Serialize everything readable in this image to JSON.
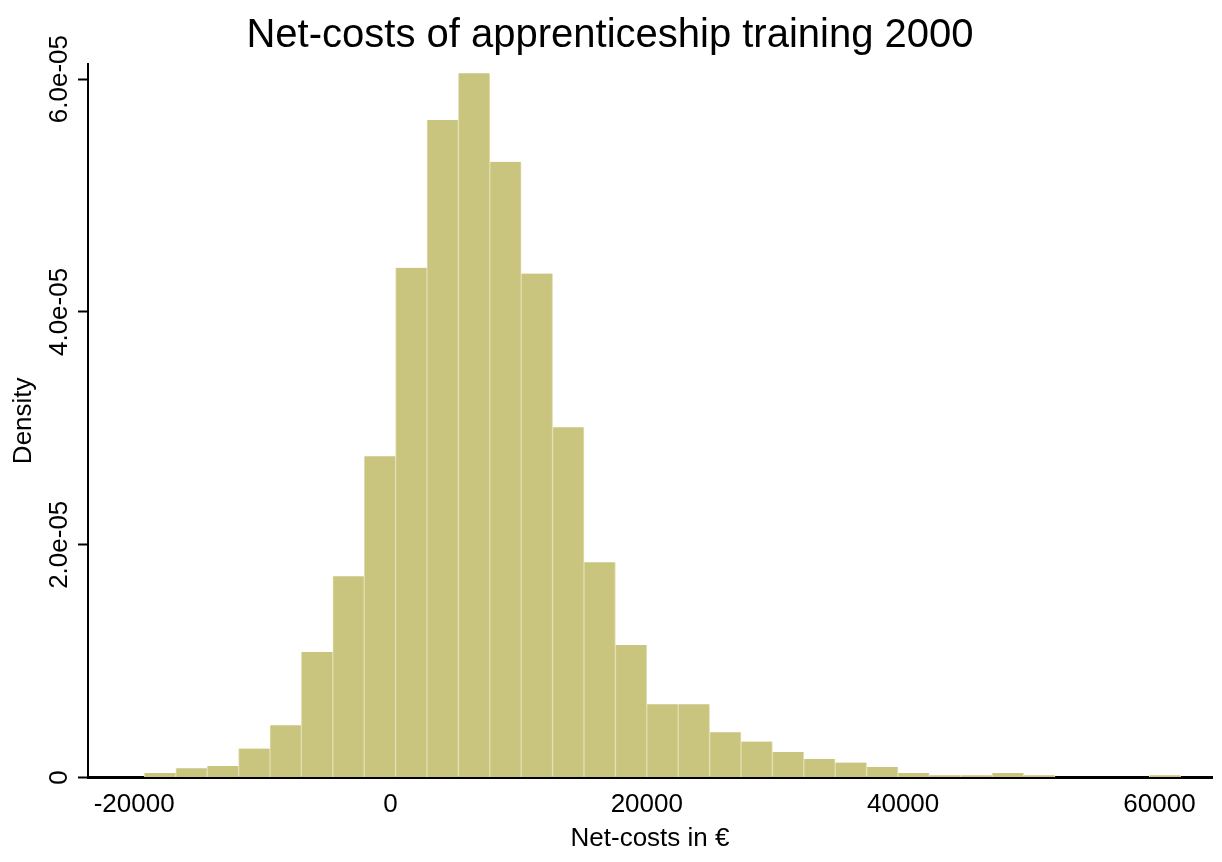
{
  "chart_data": {
    "type": "histogram",
    "title": "Net-costs of apprenticeship training 2000",
    "xlabel": "Net-costs in €",
    "ylabel": "Density",
    "bins": [
      -19200,
      -16750,
      -14300,
      -11850,
      -9400,
      -6950,
      -4500,
      -2050,
      400,
      2850,
      5300,
      7750,
      10200,
      12650,
      15100,
      17550,
      20000,
      22450,
      24900,
      27350,
      29800,
      32250,
      34700,
      37150,
      39600,
      42050,
      44500,
      46950,
      49400,
      51850,
      54300,
      56750,
      59200,
      61650
    ],
    "values": [
      4e-07,
      8e-07,
      1e-06,
      2.5e-06,
      4.5e-06,
      1.08e-05,
      1.73e-05,
      2.76e-05,
      4.38e-05,
      5.65e-05,
      6.05e-05,
      5.29e-05,
      4.33e-05,
      3.01e-05,
      1.85e-05,
      1.14e-05,
      6.3e-06,
      6.3e-06,
      3.9e-06,
      3.1e-06,
      2.2e-06,
      1.6e-06,
      1.3e-06,
      9e-07,
      4e-07,
      2e-07,
      2e-07,
      4e-07,
      2e-07,
      0,
      0,
      0,
      2e-07
    ],
    "color": "#c9c47e",
    "xlim": [
      -23600,
      64100
    ],
    "xticks": [
      -20000,
      0,
      20000,
      40000,
      60000
    ],
    "ylim": [
      0,
      6.13e-05
    ],
    "yticks": [
      0,
      {
        "value": 2e-05,
        "label": "2.0e-05"
      },
      {
        "value": 4e-05,
        "label": "4.0e-05"
      },
      {
        "value": 6e-05,
        "label": "6.0e-05"
      }
    ],
    "grid": false,
    "legend": false
  }
}
